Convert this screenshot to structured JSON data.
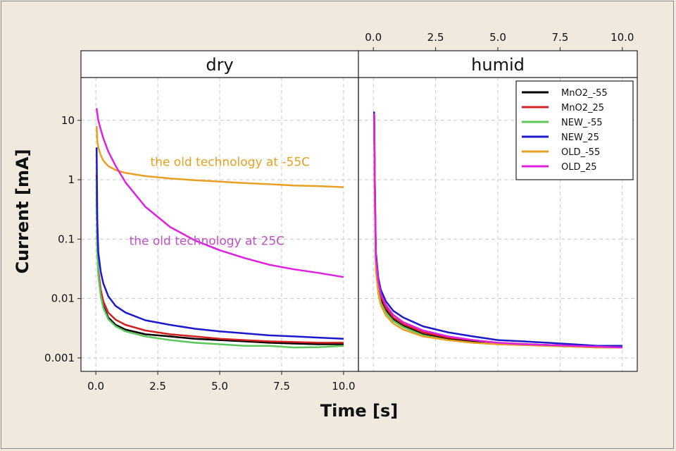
{
  "chart_data": {
    "type": "line",
    "panels": [
      "dry",
      "humid"
    ],
    "xlabel": "Time [s]",
    "ylabel": "Current [mA]",
    "xlim": [
      -0.6,
      10.6
    ],
    "ylim": [
      0.0007,
      40
    ],
    "y_scale": "log",
    "grid": true,
    "x_ticks": [
      "0.0",
      "2.5",
      "5.0",
      "7.5",
      "10.0"
    ],
    "x_tick_values": [
      0,
      2.5,
      5,
      7.5,
      10
    ],
    "y_ticks": [
      "10",
      "1",
      "0.1",
      "0.01",
      "0.001"
    ],
    "y_tick_values": [
      10,
      1,
      0.1,
      0.01,
      0.001
    ],
    "legend_position": "top-right",
    "annotations": [
      {
        "text": "the old technology at -55C",
        "panel": "dry",
        "x": 2.2,
        "y": 1.7,
        "color": "#e8a020"
      },
      {
        "text": "the old technology at 25C",
        "panel": "dry",
        "x": 1.35,
        "y": 0.08,
        "color": "#c050c8"
      }
    ],
    "series": [
      {
        "name": "MnO2_-55",
        "color": "#000000",
        "dry": {
          "x": [
            0.03,
            0.06,
            0.1,
            0.2,
            0.3,
            0.5,
            0.8,
            1.2,
            2,
            3,
            4,
            5,
            6,
            7,
            8,
            9,
            10
          ],
          "y": [
            0.8,
            0.06,
            0.028,
            0.012,
            0.0075,
            0.0048,
            0.0036,
            0.003,
            0.0025,
            0.0023,
            0.0021,
            0.002,
            0.0019,
            0.0018,
            0.00175,
            0.0017,
            0.0017
          ]
        },
        "humid": {
          "x": [
            0.03,
            0.06,
            0.1,
            0.2,
            0.3,
            0.5,
            0.8,
            1.2,
            2,
            3,
            4,
            5,
            6,
            7,
            8,
            9,
            10
          ],
          "y": [
            12,
            0.6,
            0.04,
            0.015,
            0.01,
            0.0065,
            0.0045,
            0.0035,
            0.0025,
            0.0021,
            0.0019,
            0.00175,
            0.0017,
            0.00165,
            0.0016,
            0.00155,
            0.0015
          ]
        }
      },
      {
        "name": "MnO2_25",
        "color": "#d42020",
        "dry": {
          "x": [
            0.03,
            0.06,
            0.1,
            0.2,
            0.3,
            0.5,
            0.8,
            1.2,
            2,
            3,
            4,
            5,
            6,
            7,
            8,
            9,
            10
          ],
          "y": [
            1.2,
            0.08,
            0.03,
            0.014,
            0.009,
            0.0058,
            0.0044,
            0.0036,
            0.0029,
            0.0025,
            0.0023,
            0.0021,
            0.002,
            0.0019,
            0.00185,
            0.0018,
            0.0018
          ]
        },
        "humid": {
          "x": [
            0.03,
            0.06,
            0.1,
            0.2,
            0.3,
            0.5,
            0.8,
            1.2,
            2,
            3,
            4,
            5,
            6,
            7,
            8,
            9,
            10
          ],
          "y": [
            13,
            0.7,
            0.045,
            0.017,
            0.011,
            0.007,
            0.0048,
            0.0037,
            0.0027,
            0.0022,
            0.002,
            0.0018,
            0.00172,
            0.00165,
            0.0016,
            0.00155,
            0.0015
          ]
        }
      },
      {
        "name": "NEW_-55",
        "color": "#5cc85c",
        "dry": {
          "x": [
            0.03,
            0.06,
            0.1,
            0.2,
            0.3,
            0.5,
            0.8,
            1.2,
            2,
            3,
            4,
            5,
            6,
            7,
            8,
            9,
            10
          ],
          "y": [
            1.0,
            0.06,
            0.025,
            0.011,
            0.007,
            0.0045,
            0.0034,
            0.0028,
            0.0023,
            0.002,
            0.0018,
            0.0017,
            0.0016,
            0.0016,
            0.0015,
            0.00152,
            0.0016
          ]
        },
        "humid": {
          "x": [
            0.03,
            0.06,
            0.1,
            0.2,
            0.3,
            0.5,
            0.8,
            1.2,
            2,
            3,
            4,
            5,
            6,
            7,
            8,
            9,
            10
          ],
          "y": [
            11,
            0.5,
            0.035,
            0.013,
            0.0085,
            0.0058,
            0.0042,
            0.0033,
            0.0024,
            0.002,
            0.0018,
            0.0017,
            0.00165,
            0.0016,
            0.00155,
            0.0015,
            0.0015
          ]
        }
      },
      {
        "name": "NEW_25",
        "color": "#1a1acc",
        "dry": {
          "x": [
            0.03,
            0.06,
            0.1,
            0.2,
            0.3,
            0.5,
            0.8,
            1.2,
            2,
            3,
            4,
            5,
            6,
            7,
            8,
            9,
            10
          ],
          "y": [
            3.5,
            0.2,
            0.06,
            0.028,
            0.018,
            0.011,
            0.0075,
            0.0058,
            0.0043,
            0.0036,
            0.0031,
            0.0028,
            0.0026,
            0.0024,
            0.0023,
            0.0022,
            0.0021
          ]
        },
        "humid": {
          "x": [
            0.03,
            0.06,
            0.1,
            0.2,
            0.3,
            0.5,
            0.8,
            1.2,
            2,
            3,
            4,
            5,
            6,
            7,
            8,
            9,
            10
          ],
          "y": [
            14,
            1.0,
            0.06,
            0.022,
            0.014,
            0.009,
            0.0062,
            0.0048,
            0.0034,
            0.0027,
            0.0023,
            0.002,
            0.0019,
            0.0018,
            0.0017,
            0.0016,
            0.0016
          ]
        }
      },
      {
        "name": "OLD_-55",
        "color": "#e8a020",
        "dry": {
          "x": [
            0.03,
            0.06,
            0.1,
            0.2,
            0.3,
            0.5,
            0.8,
            1.2,
            2,
            3,
            4,
            5,
            6,
            7,
            8,
            9,
            10
          ],
          "y": [
            8,
            4.5,
            3.5,
            2.6,
            2.1,
            1.7,
            1.45,
            1.3,
            1.15,
            1.05,
            0.98,
            0.93,
            0.88,
            0.84,
            0.8,
            0.78,
            0.75
          ]
        },
        "humid": {
          "x": [
            0.03,
            0.06,
            0.1,
            0.2,
            0.3,
            0.5,
            0.8,
            1.2,
            2,
            3,
            4,
            5,
            6,
            7,
            8,
            9,
            10
          ],
          "y": [
            10,
            0.4,
            0.03,
            0.012,
            0.0078,
            0.0052,
            0.0038,
            0.003,
            0.0023,
            0.002,
            0.0018,
            0.0017,
            0.00165,
            0.0016,
            0.00155,
            0.0015,
            0.0015
          ]
        }
      },
      {
        "name": "OLD_25",
        "color": "#e020e0",
        "dry": {
          "x": [
            0.03,
            0.06,
            0.1,
            0.2,
            0.3,
            0.5,
            0.8,
            1.2,
            2,
            3,
            4,
            5,
            6,
            7,
            8,
            9,
            10
          ],
          "y": [
            16,
            13,
            10,
            7,
            5,
            3,
            1.7,
            0.9,
            0.35,
            0.16,
            0.095,
            0.065,
            0.048,
            0.037,
            0.031,
            0.027,
            0.023
          ]
        },
        "humid": {
          "x": [
            0.03,
            0.06,
            0.1,
            0.2,
            0.3,
            0.5,
            0.8,
            1.2,
            2,
            3,
            4,
            5,
            6,
            7,
            8,
            9,
            10
          ],
          "y": [
            13,
            0.8,
            0.05,
            0.019,
            0.012,
            0.0078,
            0.0053,
            0.004,
            0.0029,
            0.0023,
            0.002,
            0.0018,
            0.0017,
            0.00165,
            0.0016,
            0.00155,
            0.0015
          ]
        }
      }
    ]
  }
}
